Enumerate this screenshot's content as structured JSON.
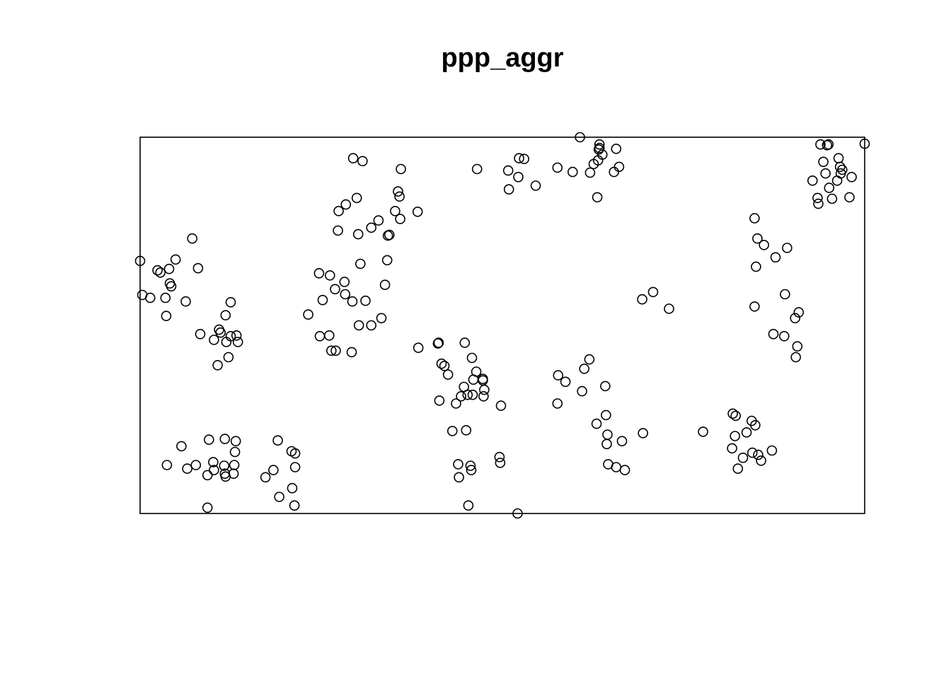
{
  "chart_data": {
    "type": "scatter",
    "title": "ppp_aggr",
    "xlabel": "",
    "ylabel": "",
    "xlim": [
      0,
      1
    ],
    "ylim": [
      0,
      0.52
    ],
    "grid": false,
    "marker": "open-circle",
    "marker_color": "#000000",
    "window_border": true,
    "series": [
      {
        "points": [
          [
            0.0,
            0.349
          ],
          [
            0.003,
            0.302
          ],
          [
            0.014,
            0.298
          ],
          [
            0.024,
            0.336
          ],
          [
            0.028,
            0.333
          ],
          [
            0.035,
            0.298
          ],
          [
            0.036,
            0.273
          ],
          [
            0.04,
            0.338
          ],
          [
            0.041,
            0.318
          ],
          [
            0.043,
            0.314
          ],
          [
            0.049,
            0.351
          ],
          [
            0.063,
            0.293
          ],
          [
            0.072,
            0.38
          ],
          [
            0.08,
            0.339
          ],
          [
            0.083,
            0.248
          ],
          [
            0.102,
            0.24
          ],
          [
            0.107,
            0.205
          ],
          [
            0.109,
            0.254
          ],
          [
            0.111,
            0.25
          ],
          [
            0.118,
            0.274
          ],
          [
            0.119,
            0.237
          ],
          [
            0.122,
            0.216
          ],
          [
            0.125,
            0.245
          ],
          [
            0.125,
            0.292
          ],
          [
            0.133,
            0.246
          ],
          [
            0.135,
            0.237
          ],
          [
            0.037,
            0.067
          ],
          [
            0.057,
            0.093
          ],
          [
            0.065,
            0.062
          ],
          [
            0.077,
            0.067
          ],
          [
            0.093,
            0.053
          ],
          [
            0.095,
            0.102
          ],
          [
            0.101,
            0.071
          ],
          [
            0.102,
            0.06
          ],
          [
            0.116,
            0.066
          ],
          [
            0.117,
            0.055
          ],
          [
            0.118,
            0.051
          ],
          [
            0.117,
            0.103
          ],
          [
            0.129,
            0.055
          ],
          [
            0.13,
            0.067
          ],
          [
            0.131,
            0.085
          ],
          [
            0.132,
            0.1
          ],
          [
            0.093,
            0.008
          ],
          [
            0.173,
            0.05
          ],
          [
            0.184,
            0.06
          ],
          [
            0.19,
            0.101
          ],
          [
            0.192,
            0.023
          ],
          [
            0.209,
            0.086
          ],
          [
            0.21,
            0.035
          ],
          [
            0.214,
            0.083
          ],
          [
            0.214,
            0.064
          ],
          [
            0.213,
            0.011
          ],
          [
            0.232,
            0.275
          ],
          [
            0.247,
            0.332
          ],
          [
            0.248,
            0.245
          ],
          [
            0.252,
            0.295
          ],
          [
            0.261,
            0.246
          ],
          [
            0.262,
            0.329
          ],
          [
            0.264,
            0.225
          ],
          [
            0.269,
            0.31
          ],
          [
            0.27,
            0.225
          ],
          [
            0.273,
            0.391
          ],
          [
            0.274,
            0.418
          ],
          [
            0.282,
            0.32
          ],
          [
            0.283,
            0.303
          ],
          [
            0.284,
            0.427
          ],
          [
            0.292,
            0.223
          ],
          [
            0.293,
            0.293
          ],
          [
            0.294,
            0.491
          ],
          [
            0.299,
            0.436
          ],
          [
            0.301,
            0.386
          ],
          [
            0.302,
            0.26
          ],
          [
            0.304,
            0.345
          ],
          [
            0.307,
            0.487
          ],
          [
            0.311,
            0.294
          ],
          [
            0.319,
            0.395
          ],
          [
            0.319,
            0.26
          ],
          [
            0.329,
            0.405
          ],
          [
            0.333,
            0.27
          ],
          [
            0.338,
            0.316
          ],
          [
            0.341,
            0.35
          ],
          [
            0.342,
            0.384
          ],
          [
            0.344,
            0.385
          ],
          [
            0.352,
            0.418
          ],
          [
            0.356,
            0.445
          ],
          [
            0.358,
            0.438
          ],
          [
            0.359,
            0.407
          ],
          [
            0.36,
            0.476
          ],
          [
            0.383,
            0.417
          ],
          [
            0.384,
            0.229
          ],
          [
            0.411,
            0.235
          ],
          [
            0.412,
            0.236
          ],
          [
            0.413,
            0.156
          ],
          [
            0.416,
            0.207
          ],
          [
            0.42,
            0.204
          ],
          [
            0.425,
            0.192
          ],
          [
            0.431,
            0.114
          ],
          [
            0.436,
            0.152
          ],
          [
            0.439,
            0.068
          ],
          [
            0.443,
            0.162
          ],
          [
            0.44,
            0.05
          ],
          [
            0.447,
            0.175
          ],
          [
            0.448,
            0.236
          ],
          [
            0.45,
            0.115
          ],
          [
            0.452,
            0.164
          ],
          [
            0.453,
            0.011
          ],
          [
            0.456,
            0.066
          ],
          [
            0.457,
            0.06
          ],
          [
            0.458,
            0.215
          ],
          [
            0.459,
            0.164
          ],
          [
            0.46,
            0.185
          ],
          [
            0.464,
            0.196
          ],
          [
            0.473,
            0.186
          ],
          [
            0.473,
            0.184
          ],
          [
            0.474,
            0.162
          ],
          [
            0.475,
            0.171
          ],
          [
            0.496,
            0.078
          ],
          [
            0.497,
            0.07
          ],
          [
            0.498,
            0.149
          ],
          [
            0.521,
            0.0
          ],
          [
            0.465,
            0.476
          ],
          [
            0.508,
            0.474
          ],
          [
            0.509,
            0.448
          ],
          [
            0.522,
            0.465
          ],
          [
            0.523,
            0.491
          ],
          [
            0.53,
            0.49
          ],
          [
            0.546,
            0.453
          ],
          [
            0.576,
            0.478
          ],
          [
            0.576,
            0.152
          ],
          [
            0.577,
            0.191
          ],
          [
            0.587,
            0.182
          ],
          [
            0.597,
            0.472
          ],
          [
            0.61,
            0.169
          ],
          [
            0.613,
            0.2
          ],
          [
            0.607,
            0.52
          ],
          [
            0.621,
            0.471
          ],
          [
            0.626,
            0.483
          ],
          [
            0.62,
            0.213
          ],
          [
            0.631,
            0.437
          ],
          [
            0.63,
            0.124
          ],
          [
            0.632,
            0.488
          ],
          [
            0.633,
            0.503
          ],
          [
            0.634,
            0.51
          ],
          [
            0.634,
            0.505
          ],
          [
            0.638,
            0.496
          ],
          [
            0.642,
            0.176
          ],
          [
            0.643,
            0.136
          ],
          [
            0.644,
            0.096
          ],
          [
            0.645,
            0.109
          ],
          [
            0.646,
            0.068
          ],
          [
            0.654,
            0.472
          ],
          [
            0.657,
            0.504
          ],
          [
            0.657,
            0.064
          ],
          [
            0.661,
            0.479
          ],
          [
            0.665,
            0.1
          ],
          [
            0.669,
            0.06
          ],
          [
            0.694,
            0.111
          ],
          [
            0.693,
            0.296
          ],
          [
            0.708,
            0.306
          ],
          [
            0.73,
            0.283
          ],
          [
            0.777,
            0.113
          ],
          [
            0.818,
            0.138
          ],
          [
            0.822,
            0.135
          ],
          [
            0.817,
            0.09
          ],
          [
            0.821,
            0.107
          ],
          [
            0.825,
            0.062
          ],
          [
            0.832,
            0.077
          ],
          [
            0.837,
            0.112
          ],
          [
            0.844,
            0.128
          ],
          [
            0.845,
            0.084
          ],
          [
            0.849,
            0.122
          ],
          [
            0.853,
            0.081
          ],
          [
            0.857,
            0.073
          ],
          [
            0.872,
            0.087
          ],
          [
            0.848,
            0.286
          ],
          [
            0.848,
            0.408
          ],
          [
            0.85,
            0.341
          ],
          [
            0.852,
            0.38
          ],
          [
            0.861,
            0.371
          ],
          [
            0.874,
            0.248
          ],
          [
            0.877,
            0.354
          ],
          [
            0.889,
            0.245
          ],
          [
            0.89,
            0.303
          ],
          [
            0.893,
            0.367
          ],
          [
            0.904,
            0.27
          ],
          [
            0.905,
            0.216
          ],
          [
            0.907,
            0.231
          ],
          [
            0.909,
            0.278
          ],
          [
            0.928,
            0.46
          ],
          [
            0.935,
            0.436
          ],
          [
            0.936,
            0.428
          ],
          [
            0.939,
            0.51
          ],
          [
            0.943,
            0.486
          ],
          [
            0.946,
            0.47
          ],
          [
            0.948,
            0.509
          ],
          [
            0.95,
            0.51
          ],
          [
            0.951,
            0.45
          ],
          [
            0.955,
            0.435
          ],
          [
            0.962,
            0.46
          ],
          [
            0.964,
            0.491
          ],
          [
            0.966,
            0.479
          ],
          [
            0.967,
            0.47
          ],
          [
            0.969,
            0.475
          ],
          [
            0.979,
            0.437
          ],
          [
            0.982,
            0.465
          ],
          [
            1.0,
            0.511
          ]
        ]
      }
    ]
  }
}
